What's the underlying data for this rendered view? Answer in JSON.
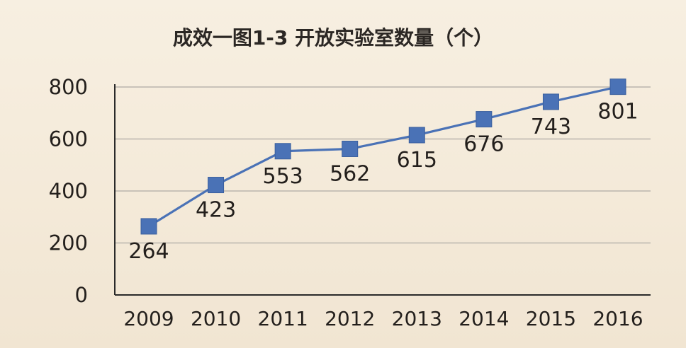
{
  "chart_data": {
    "type": "line",
    "title": "成效一图1-3 开放实验室数量（个）",
    "xlabel": "",
    "ylabel": "",
    "categories": [
      "2009",
      "2010",
      "2011",
      "2012",
      "2013",
      "2014",
      "2015",
      "2016"
    ],
    "series": [
      {
        "values": [
          264,
          423,
          553,
          562,
          615,
          676,
          743,
          801
        ]
      }
    ],
    "data_labels": [
      "264",
      "423",
      "553",
      "562",
      "615",
      "676",
      "743",
      "801"
    ],
    "yticks": [
      0,
      200,
      400,
      600,
      800
    ],
    "ylim": [
      0,
      800
    ],
    "grid": true,
    "legend": "none",
    "colors": {
      "line": "#4a72b6",
      "marker": "#4a72b6",
      "grid": "#b9b4ad",
      "axis": "#2a2a2a"
    }
  }
}
